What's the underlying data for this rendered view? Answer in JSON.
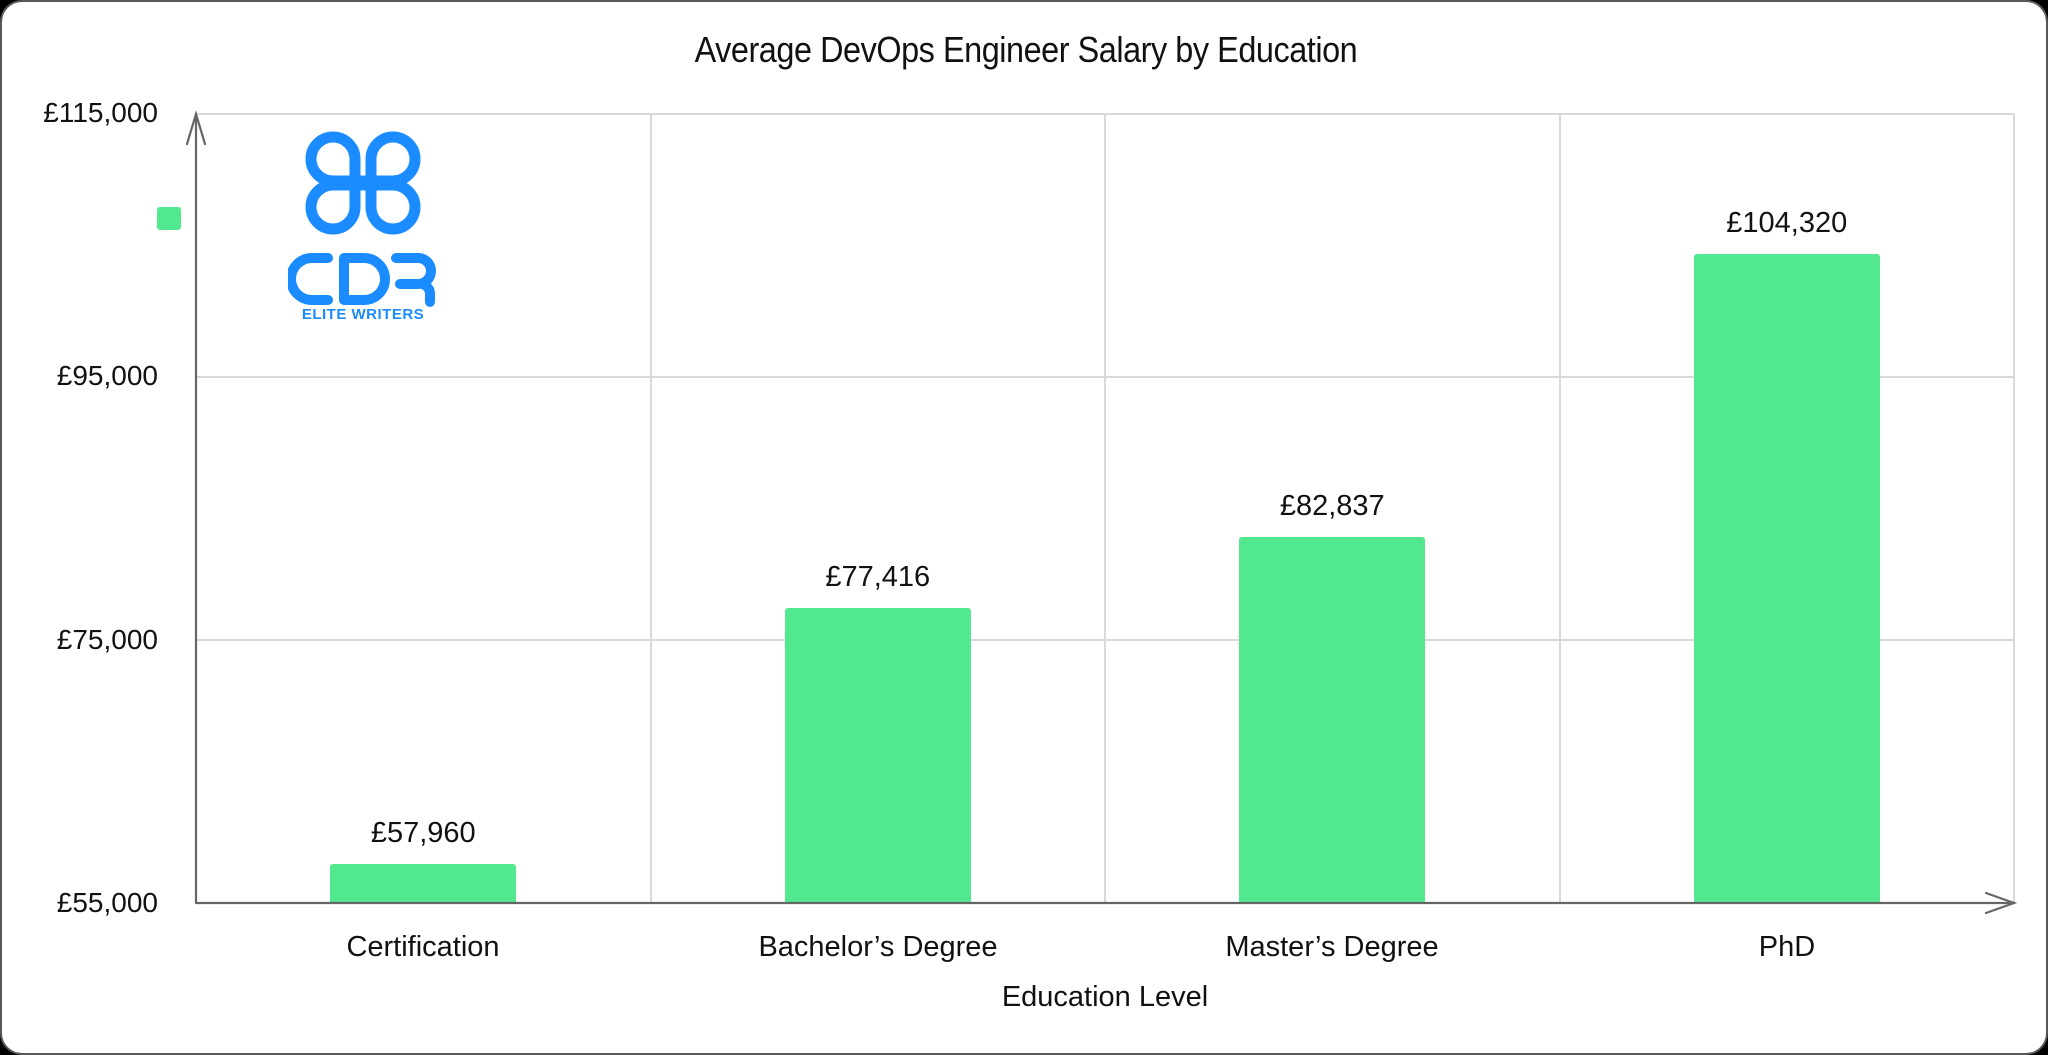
{
  "chart_data": {
    "type": "bar",
    "title": "Average DevOps Engineer Salary by Education",
    "xlabel": "Education Level",
    "ylabel": "",
    "categories": [
      "Certification",
      "Bachelor’s Degree",
      "Master’s Degree",
      "PhD"
    ],
    "values": [
      57960,
      77416,
      82837,
      104320
    ],
    "value_labels": [
      "£57,960",
      "£77,416",
      "£82,837",
      "£104,320"
    ],
    "ylim": [
      55000,
      115000
    ],
    "yticks": [
      55000,
      75000,
      95000,
      115000
    ],
    "ytick_labels": [
      "£55,000",
      "£75,000",
      "£95,000",
      "£115,000"
    ],
    "grid": true,
    "legend": {
      "position": "left",
      "entries": [
        ""
      ]
    },
    "bar_color": "#52e890"
  },
  "title": "Average DevOps Engineer Salary by Education",
  "axes": {
    "x_label": "Education Level",
    "y_ticks": [
      "£115,000",
      "£95,000",
      "£75,000",
      "£55,000"
    ]
  },
  "bars": [
    {
      "category": "Certification",
      "value_label": "£57,960"
    },
    {
      "category": "Bachelor’s Degree",
      "value_label": "£77,416"
    },
    {
      "category": "Master’s Degree",
      "value_label": "£82,837"
    },
    {
      "category": "PhD",
      "value_label": "£104,320"
    }
  ],
  "logo": {
    "brand": "CDR",
    "tagline": "ELITE WRITERS",
    "color": "#1a8cff"
  },
  "colors": {
    "bar": "#52e890",
    "grid": "#d9d9d9",
    "axis": "#666666",
    "border": "#585858"
  }
}
